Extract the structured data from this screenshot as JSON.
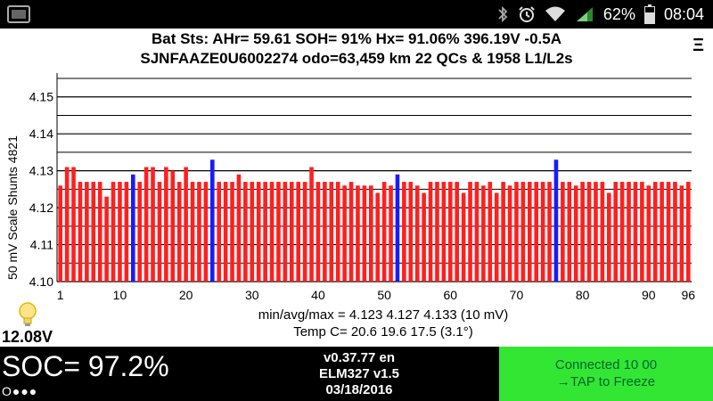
{
  "status_bar": {
    "battery_percent": "62%",
    "time": "08:04",
    "icons": [
      "thumbnail-icon",
      "bluetooth-icon",
      "alarm-icon",
      "wifi-icon",
      "signal-icon",
      "battery-icon"
    ]
  },
  "header": {
    "line1": "Bat Sts:  AHr= 59.61  SOH= 91%  Hx= 91.06%  396.19V -0.5A",
    "line2": "SJNFAAZE0U6002274 odo=63,459 km  22 QCs & 1958 L1/L2s",
    "menu_glyph": "Ξ"
  },
  "stats": {
    "line1": "min/avg/max = 4.123 4.127 4.133  (10 mV)",
    "line2": "Temp C= 20.6  19.6  17.5  (3.1°)"
  },
  "aux": {
    "voltage": "12.08V",
    "icon": "lightbulb-icon"
  },
  "bottom": {
    "soc": "SOC= 97.2%",
    "dots": "O●●●",
    "version": "v0.37.77 en",
    "adapter": "ELM327 v1.5",
    "date": "03/18/2016",
    "connected": "Connected 10 00",
    "tap": "→TAP to Freeze"
  },
  "colors": {
    "bar_normal": "#ff1f1f",
    "bar_highlight": "#1a1aff",
    "connect_bg": "#33e633",
    "connect_text": "#006633"
  },
  "chart_data": {
    "type": "bar",
    "ylabel": "50 mV Scale  Shunts 4821",
    "ylim": [
      4.1,
      4.155
    ],
    "yticks": [
      "4.10",
      "4.11",
      "4.12",
      "4.13",
      "4.14",
      "4.15"
    ],
    "xticks": [
      "1",
      "10",
      "20",
      "30",
      "40",
      "50",
      "60",
      "70",
      "80",
      "90",
      "96"
    ],
    "x_first": 1,
    "x_last": 96,
    "highlight_cells": [
      12,
      24,
      52,
      76
    ],
    "values": [
      4.126,
      4.131,
      4.131,
      4.127,
      4.127,
      4.127,
      4.127,
      4.123,
      4.127,
      4.127,
      4.127,
      4.129,
      4.127,
      4.131,
      4.131,
      4.127,
      4.131,
      4.13,
      4.127,
      4.131,
      4.127,
      4.127,
      4.127,
      4.133,
      4.127,
      4.127,
      4.127,
      4.129,
      4.127,
      4.127,
      4.127,
      4.127,
      4.127,
      4.127,
      4.127,
      4.127,
      4.127,
      4.127,
      4.131,
      4.127,
      4.127,
      4.127,
      4.127,
      4.126,
      4.127,
      4.126,
      4.126,
      4.126,
      4.124,
      4.127,
      4.126,
      4.129,
      4.127,
      4.127,
      4.126,
      4.124,
      4.127,
      4.127,
      4.127,
      4.127,
      4.127,
      4.124,
      4.127,
      4.127,
      4.126,
      4.127,
      4.124,
      4.127,
      4.126,
      4.127,
      4.127,
      4.127,
      4.127,
      4.127,
      4.127,
      4.133,
      4.127,
      4.127,
      4.126,
      4.127,
      4.127,
      4.127,
      4.127,
      4.124,
      4.127,
      4.127,
      4.127,
      4.127,
      4.127,
      4.126,
      4.127,
      4.127,
      4.127,
      4.127,
      4.126,
      4.127
    ]
  }
}
